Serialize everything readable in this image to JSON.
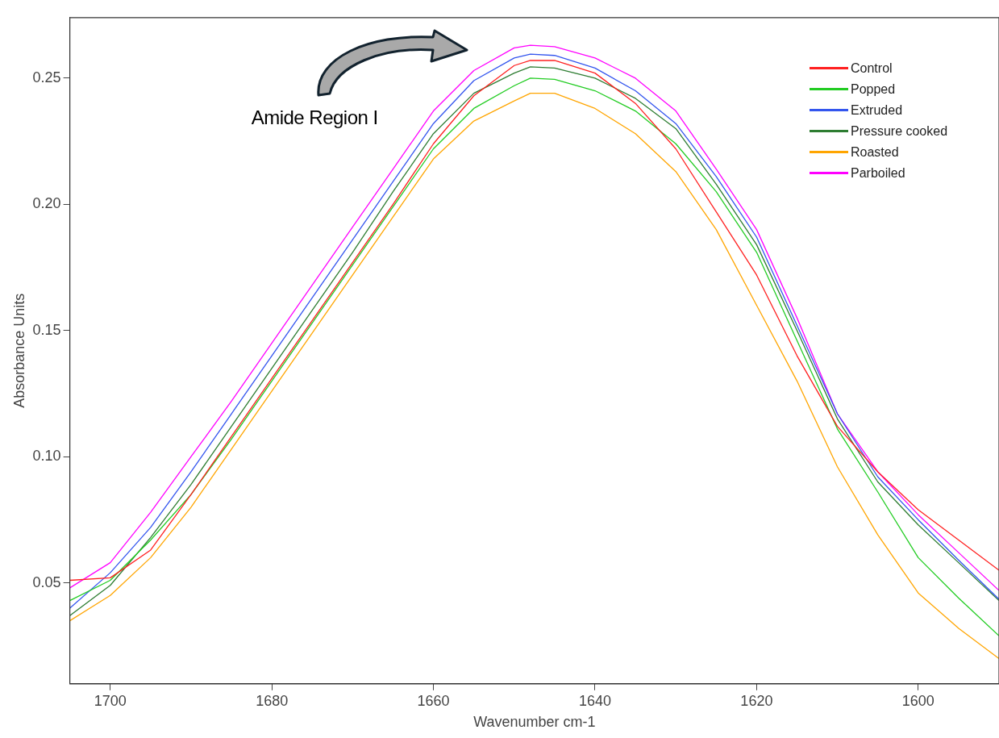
{
  "chart_data": {
    "type": "line",
    "xlabel": "Wavenumber cm-1",
    "ylabel": "Absorbance Units",
    "annotations": [
      "Amide Region I"
    ],
    "x": [
      1705,
      1700,
      1695,
      1690,
      1685,
      1680,
      1675,
      1670,
      1665,
      1660,
      1655,
      1650,
      1648,
      1645,
      1640,
      1635,
      1630,
      1625,
      1620,
      1615,
      1610,
      1605,
      1600,
      1595,
      1590
    ],
    "xlim": [
      1705,
      1590
    ],
    "xticks": [
      1700,
      1680,
      1660,
      1640,
      1620,
      1600
    ],
    "ylim": [
      0.01,
      0.274
    ],
    "yticks": [
      0.05,
      {
        "value": 0.1,
        "label": "0.10"
      },
      0.15,
      {
        "value": 0.2,
        "label": "0.20"
      },
      0.25
    ],
    "grid": false,
    "legend": "top right",
    "series": [
      {
        "name": "Control",
        "color": "#ff2020",
        "values": [
          0.051,
          0.052,
          0.063,
          0.085,
          0.108,
          0.131,
          0.154,
          0.177,
          0.2,
          0.224,
          0.243,
          0.255,
          0.257,
          0.257,
          0.252,
          0.24,
          0.222,
          0.197,
          0.172,
          0.14,
          0.112,
          0.094,
          0.079,
          0.067,
          0.055
        ]
      },
      {
        "name": "Popped",
        "color": "#22cc22",
        "values": [
          0.043,
          0.051,
          0.067,
          0.085,
          0.107,
          0.13,
          0.153,
          0.176,
          0.199,
          0.222,
          0.238,
          0.247,
          0.25,
          0.2495,
          0.245,
          0.237,
          0.224,
          0.205,
          0.181,
          0.146,
          0.111,
          0.086,
          0.06,
          0.044,
          0.029
        ]
      },
      {
        "name": "Extruded",
        "color": "#3355ee",
        "values": [
          0.04,
          0.054,
          0.072,
          0.094,
          0.117,
          0.14,
          0.163,
          0.186,
          0.209,
          0.232,
          0.249,
          0.258,
          0.2595,
          0.259,
          0.254,
          0.245,
          0.232,
          0.211,
          0.187,
          0.152,
          0.117,
          0.092,
          0.075,
          0.059,
          0.0435
        ]
      },
      {
        "name": "Pressure cooked",
        "color": "#2e7d32",
        "values": [
          0.037,
          0.049,
          0.068,
          0.089,
          0.112,
          0.135,
          0.158,
          0.181,
          0.205,
          0.228,
          0.244,
          0.252,
          0.2545,
          0.254,
          0.25,
          0.242,
          0.23,
          0.208,
          0.184,
          0.15,
          0.115,
          0.09,
          0.073,
          0.058,
          0.043
        ]
      },
      {
        "name": "Roasted",
        "color": "#ffa500",
        "values": [
          0.035,
          0.045,
          0.06,
          0.08,
          0.103,
          0.126,
          0.149,
          0.172,
          0.195,
          0.218,
          0.233,
          0.241,
          0.244,
          0.244,
          0.238,
          0.228,
          0.213,
          0.19,
          0.16,
          0.13,
          0.096,
          0.069,
          0.046,
          0.032,
          0.02
        ]
      },
      {
        "name": "Parboiled",
        "color": "#ff00ff",
        "values": [
          0.048,
          0.058,
          0.078,
          0.1,
          0.122,
          0.145,
          0.168,
          0.191,
          0.214,
          0.237,
          0.253,
          0.262,
          0.263,
          0.2625,
          0.258,
          0.25,
          0.237,
          0.214,
          0.19,
          0.155,
          0.117,
          0.094,
          0.077,
          0.062,
          0.047
        ]
      }
    ]
  }
}
